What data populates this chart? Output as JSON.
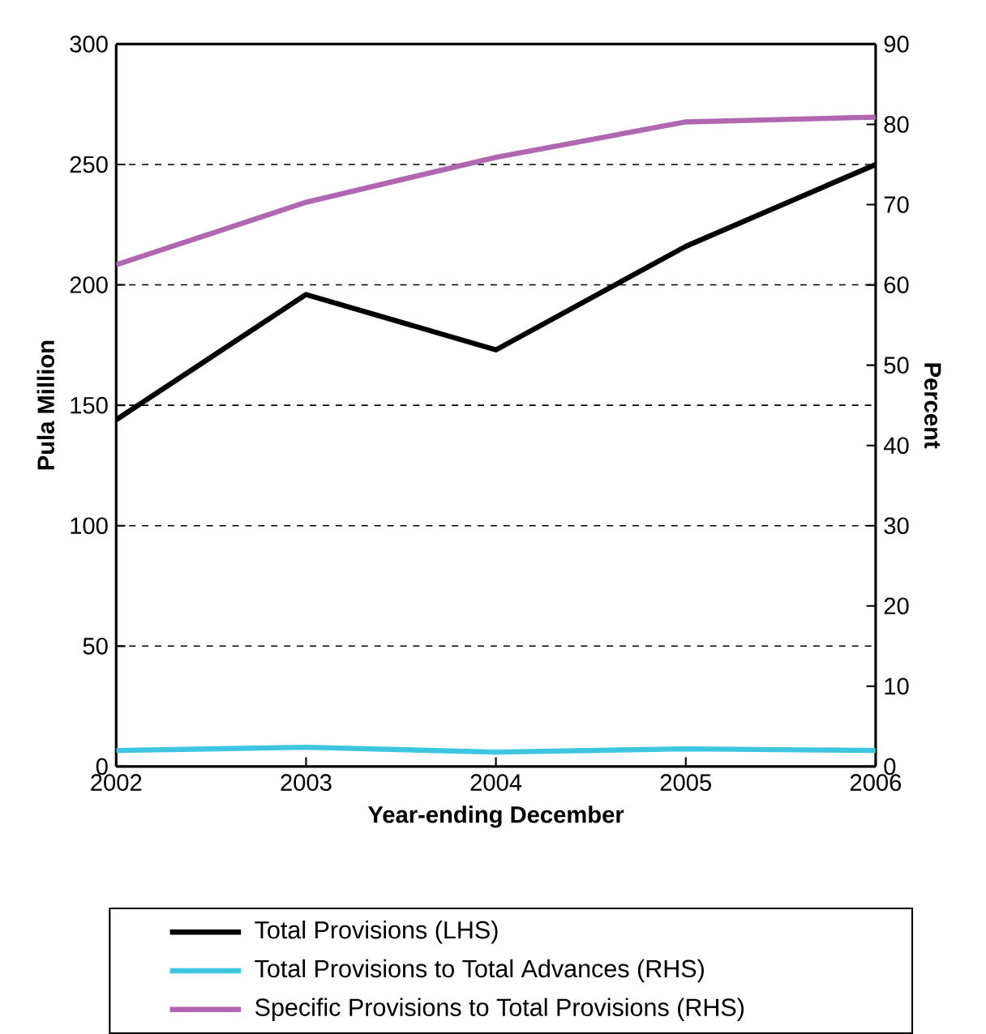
{
  "chart_data": {
    "type": "line",
    "xlabel": "Year-ending December",
    "ylabel": "Pula Million",
    "y2label": "Percent",
    "categories": [
      "2002",
      "2003",
      "2004",
      "2005",
      "2006"
    ],
    "series": [
      {
        "name": "Total Provisions (LHS)",
        "color": "#000000",
        "values": [
          144,
          196,
          173,
          216,
          250
        ]
      },
      {
        "name": "Total Provisions to Total Advances (RHS)",
        "color": "#3ec6e0",
        "axis": "y2",
        "values": [
          2.0,
          2.4,
          1.8,
          2.2,
          2.0
        ]
      },
      {
        "name": "Specific Provisions to Total Provisions (RHS)",
        "color": "#b067b0",
        "axis": "y2",
        "values": [
          62.5,
          70.3,
          75.9,
          80.3,
          80.9
        ]
      }
    ],
    "ylim": [
      0,
      300
    ],
    "yticks": [
      0,
      50,
      100,
      150,
      200,
      250,
      300
    ],
    "y2lim": [
      0,
      90
    ],
    "y2ticks": [
      0,
      10,
      20,
      30,
      40,
      50,
      60,
      70,
      80,
      90
    ],
    "grid": "y",
    "legend": "bottom",
    "marker": "none",
    "line_style": "solid"
  }
}
